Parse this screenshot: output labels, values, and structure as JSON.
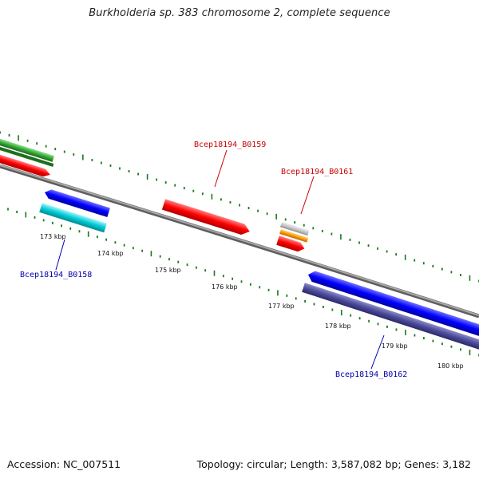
{
  "title": "Burkholderia sp. 383 chromosome 2, complete sequence",
  "footer": {
    "accession": "Accession: NC_007511",
    "summary": "Topology: circular; Length: 3,587,082 bp; Genes: 3,182"
  },
  "ticks": [
    "173 kbp",
    "174 kbp",
    "175 kbp",
    "176 kbp",
    "177 kbp",
    "178 kbp",
    "179 kbp",
    "180 kbp"
  ],
  "genes": {
    "b0159": {
      "label": "Bcep18194_B0159",
      "color": "#cc0000"
    },
    "b0161": {
      "label": "Bcep18194_B0161",
      "color": "#cc0000"
    },
    "b0158": {
      "label": "Bcep18194_B0158",
      "color": "#0000aa"
    },
    "b0162": {
      "label": "Bcep18194_B0162",
      "color": "#0000aa"
    }
  },
  "colors": {
    "backbone": "#8c8c8c",
    "tick": "#1a7a1a",
    "forward": "#ff0000",
    "reverse": "#0000ff",
    "cyan": "#00c8d2",
    "purple": "#4a4a9a",
    "green": "#3aaa3a",
    "orange": "#ff9900",
    "grey": "#c8c8c8"
  }
}
